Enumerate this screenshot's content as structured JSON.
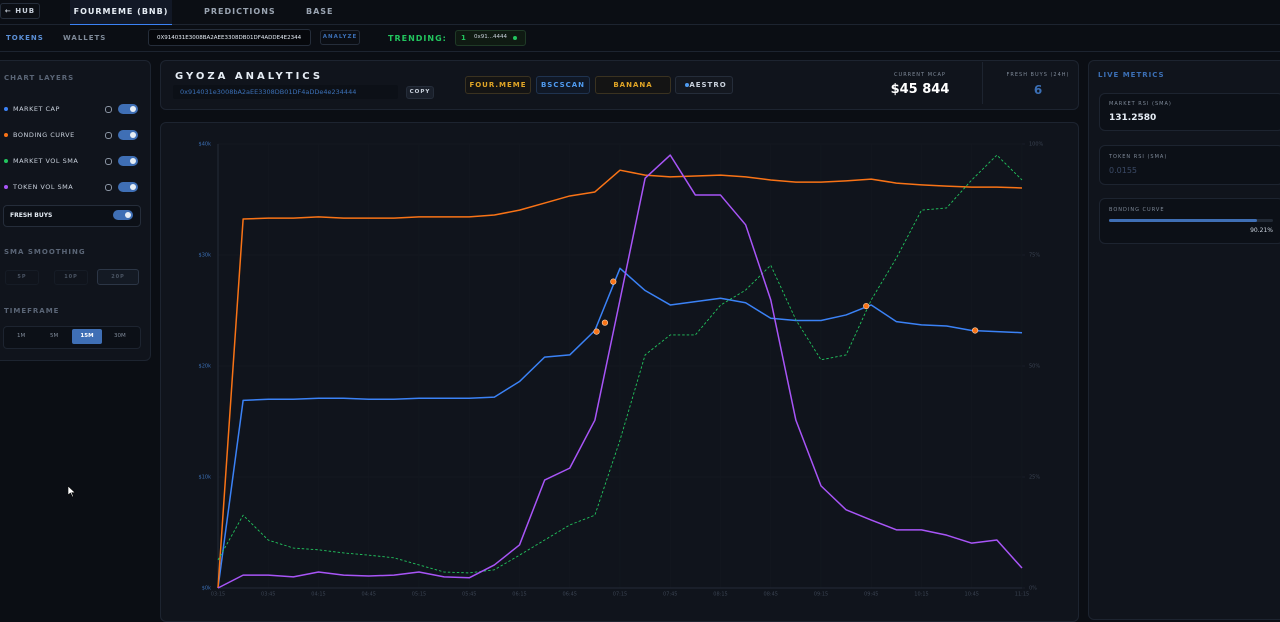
{
  "nav": {
    "back": "← HUB",
    "tabs": [
      "FOURMEME (BNB)",
      "PREDICTIONS",
      "BASE"
    ]
  },
  "subnav": {
    "tabs": [
      "TOKENS",
      "WALLETS"
    ],
    "address": "0X914031E3008BA2AEE3308DB01DF4ADDE4E2344",
    "analyze": "ANALYZE",
    "trending_label": "TRENDING:",
    "trending_rank": "1",
    "trending_token": "0x91...4444"
  },
  "sidebar": {
    "layers_title": "CHART LAYERS",
    "fresh_buys": "FRESH BUYS",
    "smoothing_title": "SMA SMOOTHING",
    "smoothing": [
      "5P",
      "10P",
      "20P"
    ],
    "timeframe_title": "TIMEFRAME",
    "timeframes": [
      "1M",
      "5M",
      "15M",
      "30M"
    ]
  },
  "header": {
    "title": "GYOZA ANALYTICS",
    "address": "0x914031e3008bA2aEE3308DB01DF4aDDe4e234444",
    "copy": "COPY",
    "links": [
      "FOUR.MEME",
      "BSCSCAN",
      "BANANA",
      "AESTRO"
    ],
    "mcap_label": "CURRENT MCAP",
    "mcap": "$45 844",
    "fresh_label": "FRESH BUYS (24H)",
    "fresh": "6"
  },
  "metrics": {
    "title": "LIVE METRICS",
    "items": [
      {
        "label": "MARKET RSI (SMA)",
        "value": "131.2580"
      },
      {
        "label": "TOKEN RSI (SMA)",
        "value": "0.0155"
      },
      {
        "label": "BONDING CURVE",
        "value": 90.21,
        "value_label": "90.21%"
      }
    ]
  },
  "chart_data": {
    "type": "line",
    "x": [
      0,
      15,
      30,
      45,
      60,
      75,
      90,
      105,
      120,
      135,
      150,
      165,
      180,
      195,
      210,
      225,
      240,
      255,
      270,
      285,
      300,
      315,
      330,
      345,
      360,
      375,
      390,
      405,
      420,
      435,
      450,
      465,
      480
    ],
    "xlim": [
      0,
      480
    ],
    "xticks": [
      {
        "value": 0,
        "label": "03:15"
      },
      {
        "value": 30,
        "label": "03:45"
      },
      {
        "value": 60,
        "label": "04:15"
      },
      {
        "value": 90,
        "label": "04:45"
      },
      {
        "value": 120,
        "label": "05:15"
      },
      {
        "value": 150,
        "label": "05:45"
      },
      {
        "value": 180,
        "label": "06:15"
      },
      {
        "value": 210,
        "label": "06:45"
      },
      {
        "value": 240,
        "label": "07:15"
      },
      {
        "value": 270,
        "label": "07:45"
      },
      {
        "value": 300,
        "label": "08:15"
      },
      {
        "value": 330,
        "label": "08:45"
      },
      {
        "value": 360,
        "label": "09:15"
      },
      {
        "value": 390,
        "label": "09:45"
      },
      {
        "value": 420,
        "label": "10:15"
      },
      {
        "value": 450,
        "label": "10:45"
      },
      {
        "value": 480,
        "label": "11:15"
      }
    ],
    "ylim": [
      0,
      40000
    ],
    "yticks": [
      {
        "value": 0,
        "label": "$0k"
      },
      {
        "value": 10000,
        "label": "$10k"
      },
      {
        "value": 20000,
        "label": "$20k"
      },
      {
        "value": 30000,
        "label": "$30k"
      },
      {
        "value": 40000,
        "label": "$40k"
      }
    ],
    "y2lim": [
      0,
      100
    ],
    "y2ticks": [
      {
        "value": 0,
        "label": "0%"
      },
      {
        "value": 25,
        "label": "25%"
      },
      {
        "value": 50,
        "label": "50%"
      },
      {
        "value": 75,
        "label": "75%"
      },
      {
        "value": 100,
        "label": "100%"
      }
    ],
    "grid": true,
    "series": [
      {
        "name": "MARKET CAP",
        "color": "#3b82f6",
        "style": "solid",
        "values": [
          0,
          16900,
          17000,
          17000,
          17100,
          17100,
          17000,
          17000,
          17100,
          17100,
          17100,
          17200,
          18600,
          20800,
          21000,
          23200,
          28800,
          26800,
          25500,
          25800,
          26100,
          25700,
          24300,
          24100,
          24100,
          24600,
          25500,
          24000,
          23700,
          23600,
          23200,
          23100,
          23000
        ]
      },
      {
        "name": "BONDING CURVE",
        "color": "#f97316",
        "style": "solid",
        "axis": "y2",
        "values": [
          0,
          83.1,
          83.3,
          83.3,
          83.6,
          83.3,
          83.3,
          83.3,
          83.6,
          83.6,
          83.6,
          84.0,
          85.1,
          86.7,
          88.3,
          89.2,
          94.1,
          93.0,
          92.6,
          92.8,
          93.0,
          92.6,
          91.9,
          91.4,
          91.4,
          91.7,
          92.1,
          91.2,
          90.8,
          90.5,
          90.3,
          90.3,
          90.1
        ]
      },
      {
        "name": "MARKET VOL SMA",
        "color": "#22c55e",
        "style": "dashed",
        "axis": "y2",
        "values": [
          6.3,
          16.4,
          10.8,
          9.0,
          8.6,
          7.9,
          7.4,
          6.8,
          5.2,
          3.6,
          3.4,
          4.1,
          7.4,
          10.8,
          14.2,
          16.4,
          33.3,
          52.5,
          57.0,
          57.0,
          63.7,
          67.1,
          72.7,
          60.4,
          51.4,
          52.5,
          64.9,
          74.3,
          85.1,
          85.6,
          91.9,
          97.5,
          91.9
        ]
      },
      {
        "name": "TOKEN VOL SMA",
        "color": "#a855f7",
        "style": "solid",
        "axis": "y2",
        "values": [
          0,
          2.9,
          2.9,
          2.5,
          3.6,
          2.9,
          2.7,
          2.9,
          3.6,
          2.5,
          2.3,
          5.2,
          9.7,
          24.3,
          27.0,
          37.8,
          64.9,
          92.3,
          97.5,
          88.5,
          88.5,
          81.8,
          64.9,
          37.8,
          23.0,
          17.6,
          15.3,
          13.1,
          13.1,
          11.9,
          10.1,
          10.8,
          4.5
        ]
      }
    ],
    "markers": {
      "color": "#f97316",
      "x": [
        226,
        231,
        236,
        387,
        452
      ],
      "values": [
        23100,
        23900,
        27600,
        25400,
        23200
      ]
    }
  }
}
